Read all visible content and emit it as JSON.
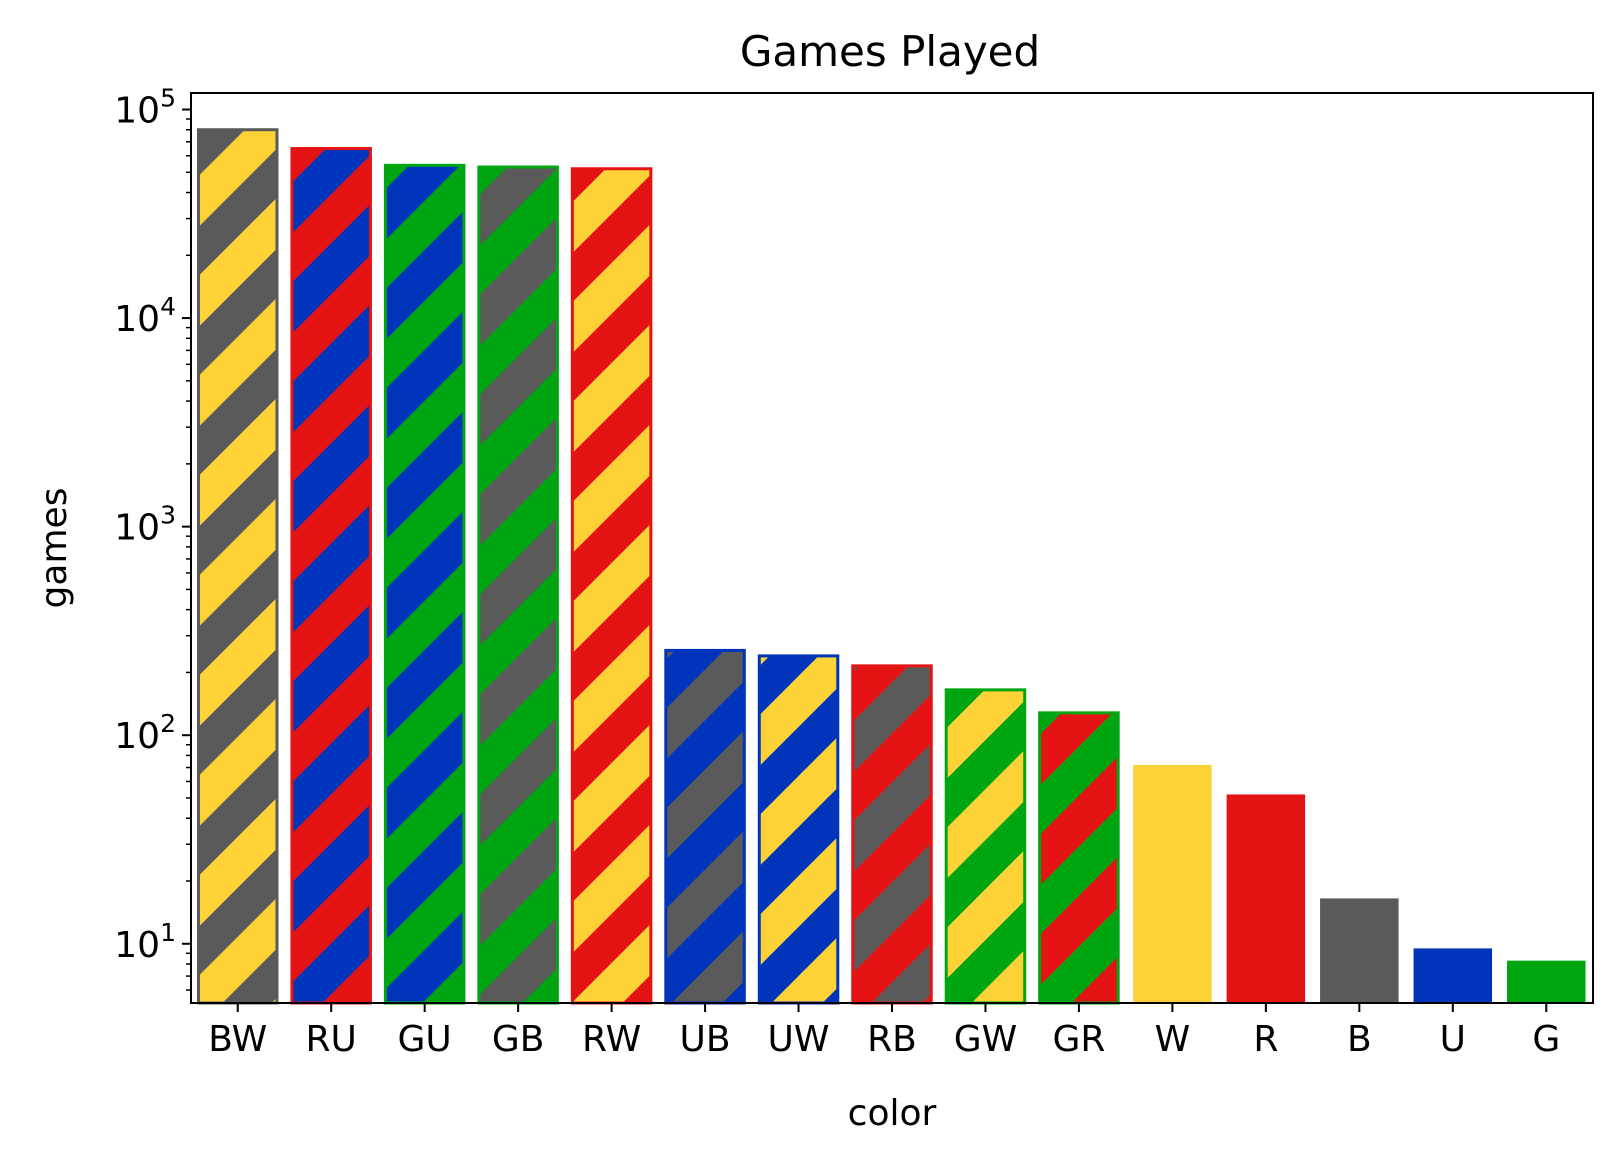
{
  "colors": {
    "W": "#fdd237",
    "U": "#0035bb",
    "B": "#5a5a5a",
    "R": "#e41414",
    "G": "#00a512"
  },
  "chart_data": {
    "type": "bar",
    "title": "Games Played",
    "xlabel": "color",
    "ylabel": "games",
    "yscale": "log",
    "ylim": [
      5.2,
      120000
    ],
    "yticks": [
      {
        "value": 10,
        "base": "10",
        "exp": "1"
      },
      {
        "value": 100,
        "base": "10",
        "exp": "2"
      },
      {
        "value": 1000,
        "base": "10",
        "exp": "3"
      },
      {
        "value": 10000,
        "base": "10",
        "exp": "4"
      },
      {
        "value": 100000,
        "base": "10",
        "exp": "5"
      }
    ],
    "grid": false,
    "categories": [
      "BW",
      "RU",
      "GU",
      "GB",
      "RW",
      "UB",
      "UW",
      "RB",
      "GW",
      "GR",
      "W",
      "R",
      "B",
      "U",
      "G"
    ],
    "values": [
      80000,
      65000,
      54000,
      53000,
      52000,
      255,
      240,
      215,
      165,
      128,
      72,
      52,
      16.5,
      9.5,
      8.3
    ],
    "bar_colors": [
      [
        "B",
        "W"
      ],
      [
        "R",
        "U"
      ],
      [
        "G",
        "U"
      ],
      [
        "G",
        "B"
      ],
      [
        "R",
        "W"
      ],
      [
        "U",
        "B"
      ],
      [
        "U",
        "W"
      ],
      [
        "R",
        "B"
      ],
      [
        "G",
        "W"
      ],
      [
        "G",
        "R"
      ],
      [
        "W"
      ],
      [
        "R"
      ],
      [
        "B"
      ],
      [
        "U"
      ],
      [
        "G"
      ]
    ]
  }
}
